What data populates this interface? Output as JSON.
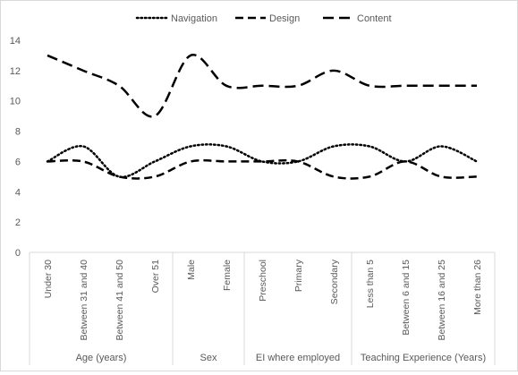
{
  "chart_data": {
    "type": "line",
    "title": "",
    "xlabel": "",
    "ylabel": "",
    "ylim": [
      0,
      14
    ],
    "yticks": [
      0,
      2,
      4,
      6,
      8,
      10,
      12,
      14
    ],
    "grid": false,
    "legend_position": "top",
    "smooth": true,
    "groups": [
      {
        "label": "Age (years)",
        "categories": [
          "Under 30",
          "Between 31 and 40",
          "Between 41 and 50",
          "Over 51"
        ]
      },
      {
        "label": "Sex",
        "categories": [
          "Male",
          "Female"
        ]
      },
      {
        "label": "EI where employed",
        "categories": [
          "Preschool",
          "Primary",
          "Secondary"
        ]
      },
      {
        "label": "Teaching Experience (Years)",
        "categories": [
          "Less than 5",
          "Between 6 and 15",
          "Between 16 and 25",
          "More than 26"
        ]
      }
    ],
    "categories": [
      "Under 30",
      "Between 31 and 40",
      "Between 41 and 50",
      "Over 51",
      "Male",
      "Female",
      "Preschool",
      "Primary",
      "Secondary",
      "Less than 5",
      "Between 6 and 15",
      "Between 16 and 25",
      "More than 26"
    ],
    "series": [
      {
        "name": "Navigation",
        "style": "dotted",
        "color": "#000000",
        "values": [
          6,
          7,
          5,
          6,
          7,
          7,
          6,
          6,
          7,
          7,
          6,
          7,
          6
        ]
      },
      {
        "name": "Design",
        "style": "dashed",
        "color": "#000000",
        "values": [
          6,
          6,
          5,
          5,
          6,
          6,
          6,
          6,
          5,
          5,
          6,
          5,
          5
        ]
      },
      {
        "name": "Content",
        "style": "long-dashed",
        "color": "#000000",
        "values": [
          13,
          12,
          11,
          9,
          13,
          11,
          11,
          11,
          12,
          11,
          11,
          11,
          11
        ]
      }
    ]
  }
}
